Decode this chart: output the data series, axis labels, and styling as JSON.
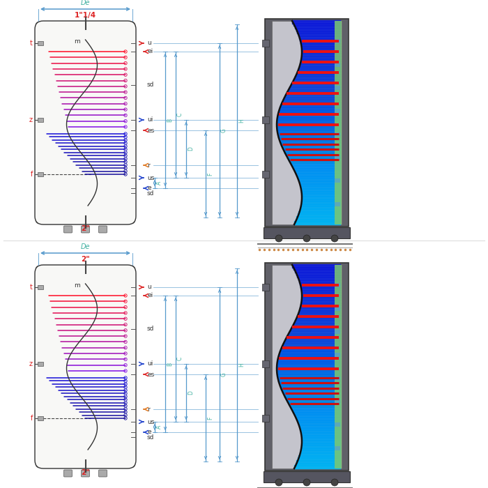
{
  "bg_color": "#ffffff",
  "green_color": "#7dc870",
  "tank_fill": "#f8f8f6",
  "tank_outline": "#333333",
  "dim_color": "#5599cc",
  "teal_color": "#40b0a0",
  "red_color": "#dd2222",
  "blue_color": "#2244cc",
  "orange_color": "#e07820",
  "gray_3d": "#a8a8b0",
  "dark_gray": "#555560",
  "diagram1_title": "1\"1/4",
  "diagram2_title": "2\"",
  "bottom_label": "2\""
}
